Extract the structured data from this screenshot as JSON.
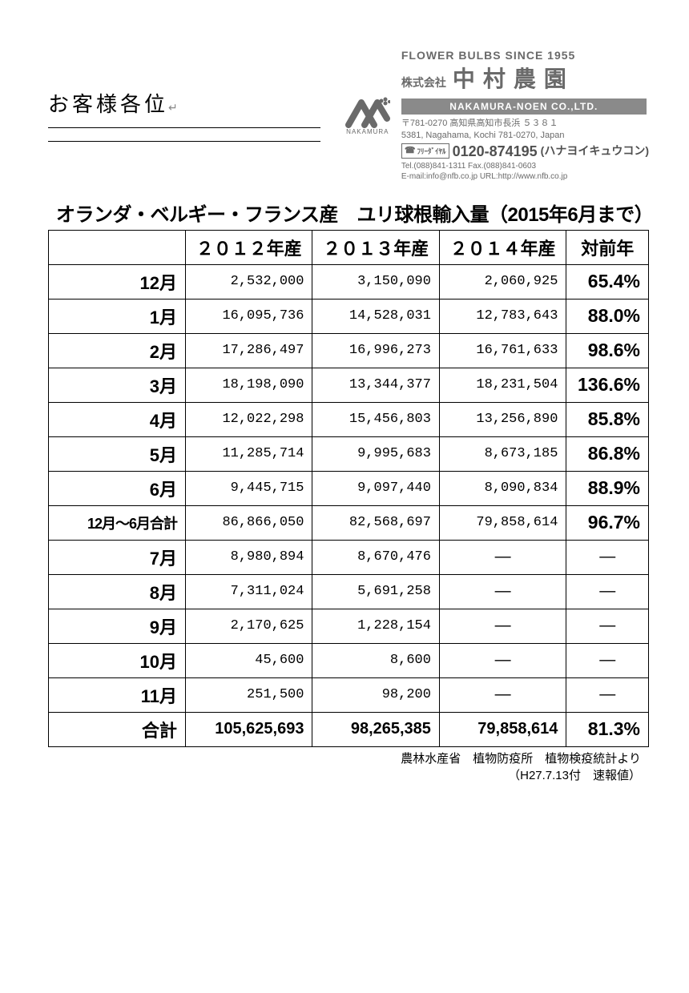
{
  "header": {
    "customer_salutation": "お客様各位",
    "return_mark": "↵",
    "tagline": "FLOWER  BULBS  SINCE  1955",
    "kabushiki": "株式会社",
    "company_name": "中村農園",
    "company_en": "NAKAMURA-NOEN  CO.,LTD.",
    "logo_sub": "NAKAMURA",
    "addr_jp": "〒781-0270 高知県高知市長浜 ５３８１",
    "addr_en": "5381, Nagahama, Kochi 781-0270, Japan",
    "free_dial_label": "ﾌﾘｰﾀﾞｲﾔﾙ",
    "phone": "0120-874195",
    "phone_note": "(ハナヨイキュウコン)",
    "tel_fax": "Tel.(088)841-1311   Fax.(088)841-0603",
    "email_url": "E-mail:info@nfb.co.jp   URL:http://www.nfb.co.jp"
  },
  "title": "オランダ・ベルギー・フランス産　ユリ球根輸入量（2015年6月まで）",
  "table": {
    "columns": [
      "",
      "２０１２年産",
      "２０１３年産",
      "２０１４年産",
      "対前年"
    ],
    "rows": [
      {
        "label": "12月",
        "bold": false,
        "v2012": "2,532,000",
        "v2013": "3,150,090",
        "v2014": "2,060,925",
        "pct": "65.4%"
      },
      {
        "label": "1月",
        "bold": false,
        "v2012": "16,095,736",
        "v2013": "14,528,031",
        "v2014": "12,783,643",
        "pct": "88.0%"
      },
      {
        "label": "2月",
        "bold": false,
        "v2012": "17,286,497",
        "v2013": "16,996,273",
        "v2014": "16,761,633",
        "pct": "98.6%"
      },
      {
        "label": "3月",
        "bold": false,
        "v2012": "18,198,090",
        "v2013": "13,344,377",
        "v2014": "18,231,504",
        "pct": "136.6%"
      },
      {
        "label": "4月",
        "bold": false,
        "v2012": "12,022,298",
        "v2013": "15,456,803",
        "v2014": "13,256,890",
        "pct": "85.8%"
      },
      {
        "label": "5月",
        "bold": false,
        "v2012": "11,285,714",
        "v2013": "9,995,683",
        "v2014": "8,673,185",
        "pct": "86.8%"
      },
      {
        "label": "6月",
        "bold": false,
        "v2012": "9,445,715",
        "v2013": "9,097,440",
        "v2014": "8,090,834",
        "pct": "88.9%"
      },
      {
        "label": "12月～6月合計",
        "bold": false,
        "subtotal": true,
        "v2012": "86,866,050",
        "v2013": "82,568,697",
        "v2014": "79,858,614",
        "pct": "96.7%"
      },
      {
        "label": "7月",
        "bold": false,
        "v2012": "8,980,894",
        "v2013": "8,670,476",
        "v2014": "―",
        "pct": "―"
      },
      {
        "label": "8月",
        "bold": false,
        "v2012": "7,311,024",
        "v2013": "5,691,258",
        "v2014": "―",
        "pct": "―"
      },
      {
        "label": "9月",
        "bold": false,
        "v2012": "2,170,625",
        "v2013": "1,228,154",
        "v2014": "―",
        "pct": "―"
      },
      {
        "label": "10月",
        "bold": false,
        "v2012": "45,600",
        "v2013": "8,600",
        "v2014": "―",
        "pct": "―"
      },
      {
        "label": "11月",
        "bold": false,
        "v2012": "251,500",
        "v2013": "98,200",
        "v2014": "―",
        "pct": "―"
      },
      {
        "label": "合計",
        "bold": true,
        "v2012": "105,625,693",
        "v2013": "98,265,385",
        "v2014": "79,858,614",
        "pct": "81.3%"
      }
    ]
  },
  "footnote": {
    "line1": "農林水産省　植物防疫所　植物検疫統計より",
    "line2": "（H27.7.13付　速報値）"
  }
}
